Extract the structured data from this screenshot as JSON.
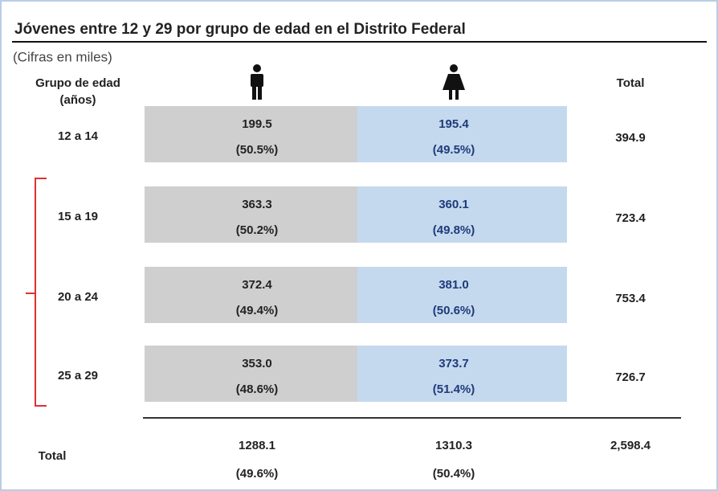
{
  "title": "Jóvenes entre 12 y 29 por grupo de edad en el Distrito Federal",
  "subtitle": "(Cifras en miles)",
  "header": {
    "group_line1": "Grupo de edad",
    "group_line2": "(años)",
    "total": "Total"
  },
  "rows": [
    {
      "group": "12 a 14",
      "male": "199.5",
      "male_pct": "(50.5%)",
      "female": "195.4",
      "female_pct": "(49.5%)",
      "total": "394.9"
    },
    {
      "group": "15 a 19",
      "male": "363.3",
      "male_pct": "(50.2%)",
      "female": "360.1",
      "female_pct": "(49.8%)",
      "total": "723.4"
    },
    {
      "group": "20 a 24",
      "male": "372.4",
      "male_pct": "(49.4%)",
      "female": "381.0",
      "female_pct": "(50.6%)",
      "total": "753.4"
    },
    {
      "group": "25 a 29",
      "male": "353.0",
      "male_pct": "(48.6%)",
      "female": "373.7",
      "female_pct": "(51.4%)",
      "total": "726.7"
    }
  ],
  "total_row": {
    "label": "Total",
    "male": "1288.1",
    "male_pct": "(49.6%)",
    "female": "1310.3",
    "female_pct": "(50.4%)",
    "total": "2,598.4"
  }
}
